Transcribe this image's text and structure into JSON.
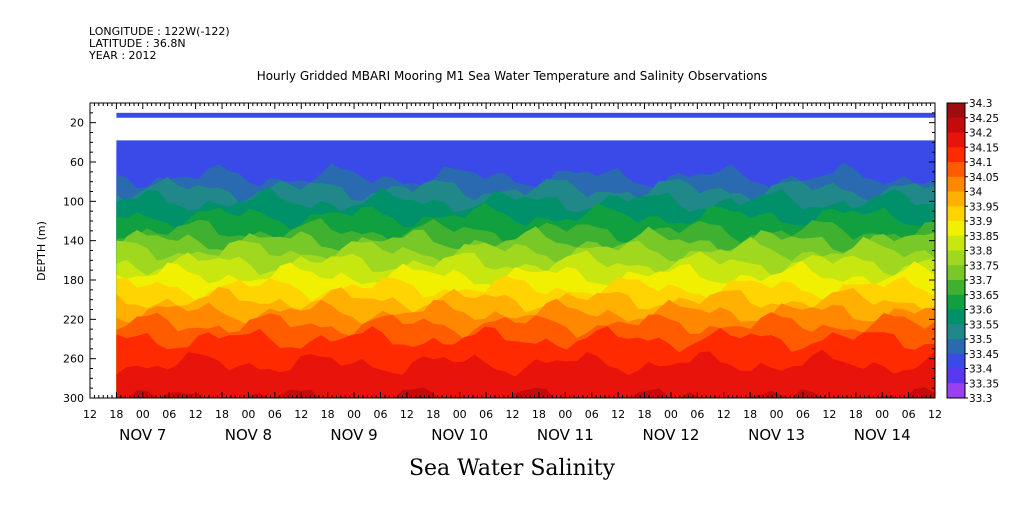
{
  "header": {
    "longitude": "LONGITUDE : 122W(-122)",
    "latitude": "LATITUDE : 36.8N",
    "year": "YEAR : 2012"
  },
  "chart_data": {
    "type": "heatmap",
    "title": "Hourly Gridded MBARI Mooring M1 Sea Water Temperature and Salinity Observations",
    "xlabel": "Sea Water Salinity",
    "ylabel": "DEPTH (m)",
    "xlim": [
      6.5,
      14.5
    ],
    "ylim": [
      300,
      0
    ],
    "x_unit": "days since Nov 1 2012 00:00",
    "x_hour_ticks": [
      "12",
      "18",
      "00",
      "06",
      "12",
      "18",
      "00",
      "06",
      "12",
      "18",
      "00",
      "06",
      "12",
      "18",
      "00",
      "06",
      "12",
      "18",
      "00",
      "06",
      "12",
      "18",
      "00",
      "06",
      "12",
      "18",
      "00",
      "06",
      "12",
      "18",
      "00",
      "06",
      "12"
    ],
    "x_date_labels": [
      {
        "day": 7,
        "label": "NOV  7"
      },
      {
        "day": 8,
        "label": "NOV  8"
      },
      {
        "day": 9,
        "label": "NOV  9"
      },
      {
        "day": 10,
        "label": "NOV 10"
      },
      {
        "day": 11,
        "label": "NOV 11"
      },
      {
        "day": 12,
        "label": "NOV 12"
      },
      {
        "day": 13,
        "label": "NOV 13"
      },
      {
        "day": 14,
        "label": "NOV 14"
      }
    ],
    "y_ticks": [
      20,
      60,
      100,
      140,
      180,
      220,
      260,
      300
    ],
    "data_start_day": 6.75,
    "data_end_day": 14.5,
    "data_top_row_depth": [
      10,
      15
    ],
    "data_gap_depth": [
      15,
      38
    ],
    "data_main_top_depth": 38,
    "depth_isohalines_m": [
      {
        "salinity": 33.5,
        "depth": 75
      },
      {
        "salinity": 33.6,
        "depth": 100
      },
      {
        "salinity": 33.7,
        "depth": 130
      },
      {
        "salinity": 33.8,
        "depth": 150
      },
      {
        "salinity": 33.9,
        "depth": 175
      },
      {
        "salinity": 34.0,
        "depth": 200
      },
      {
        "salinity": 34.1,
        "depth": 225
      },
      {
        "salinity": 34.15,
        "depth": 240
      },
      {
        "salinity": 34.2,
        "depth": 265
      },
      {
        "salinity": 34.25,
        "depth": 300
      }
    ],
    "colorbar": {
      "levels": [
        "34.3",
        "34.25",
        "34.2",
        "34.15",
        "34.1",
        "34.05",
        "34",
        "33.95",
        "33.9",
        "33.85",
        "33.8",
        "33.75",
        "33.7",
        "33.65",
        "33.6",
        "33.55",
        "33.5",
        "33.45",
        "33.4",
        "33.35",
        "33.3"
      ],
      "colors": [
        "#9e0d0d",
        "#c40a0a",
        "#e8140c",
        "#ff2a00",
        "#ff5c00",
        "#ff8800",
        "#ffb000",
        "#ffd400",
        "#f0f000",
        "#c8e610",
        "#a0d820",
        "#78c828",
        "#40b030",
        "#10a040",
        "#00906a",
        "#208888",
        "#2a6ab0",
        "#3a4ae8",
        "#5a38f0",
        "#9a40f0",
        "#cc30ee"
      ]
    }
  }
}
